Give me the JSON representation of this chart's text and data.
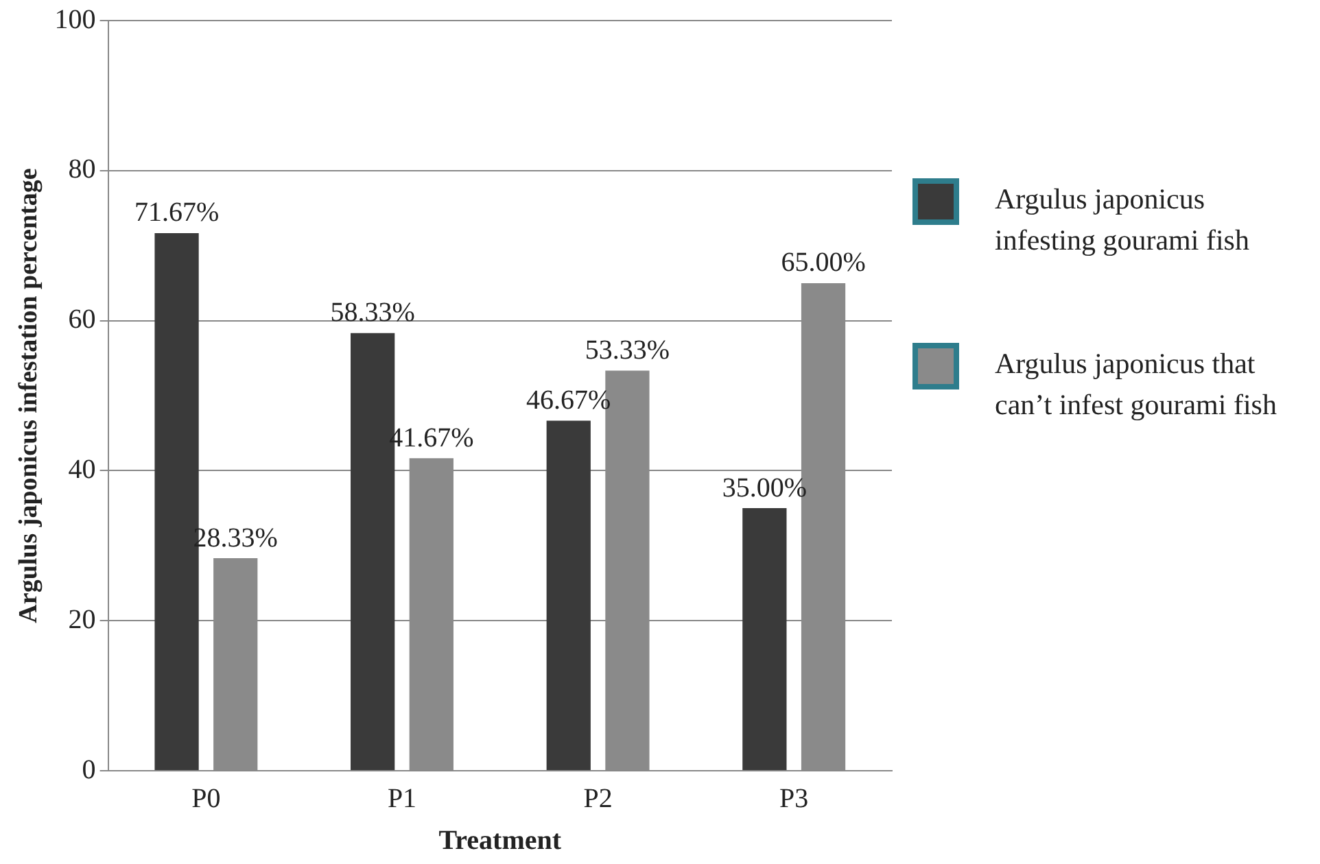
{
  "chart_data": {
    "type": "bar",
    "xlabel": "Treatment",
    "ylabel": "Argulus japonicus infestation percentage",
    "categories": [
      "P0",
      "P1",
      "P2",
      "P3"
    ],
    "series": [
      {
        "name": "Argulus japonicus infesting gourami fish",
        "color": "#3a3a3a",
        "values": [
          71.67,
          58.33,
          46.67,
          35.0
        ],
        "value_labels": [
          "71.67%",
          "58.33%",
          "46.67%",
          "35.00%"
        ]
      },
      {
        "name": "Argulus japonicus that can’t infest gourami fish",
        "color": "#8a8a8a",
        "values": [
          28.33,
          41.67,
          53.33,
          65.0
        ],
        "value_labels": [
          "28.33%",
          "41.67%",
          "53.33%",
          "65.00%"
        ]
      }
    ],
    "ylim": [
      0,
      100
    ],
    "yticks": [
      0,
      20,
      40,
      60,
      80,
      100
    ],
    "grid": "y",
    "legend": "right"
  }
}
